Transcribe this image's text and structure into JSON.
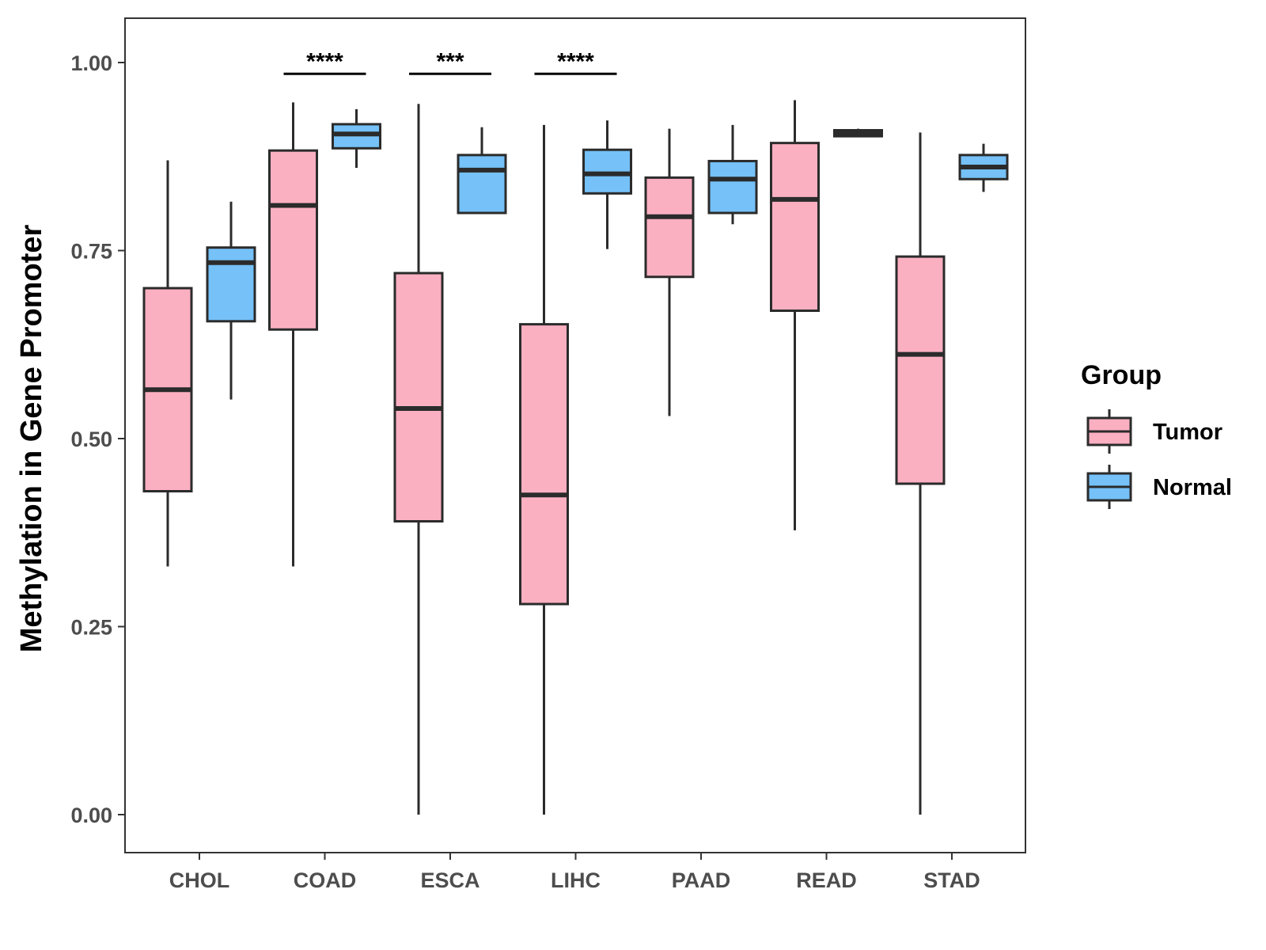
{
  "chart_data": {
    "type": "boxplot",
    "title": "",
    "xlabel": "",
    "ylabel": "Methylation in Gene Promoter",
    "ylim": [
      -0.05,
      1.06
    ],
    "yticks": [
      "0.00",
      "0.25",
      "0.50",
      "0.75",
      "1.00"
    ],
    "ytick_values": [
      0,
      0.25,
      0.5,
      0.75,
      1.0
    ],
    "categories": [
      "CHOL",
      "COAD",
      "ESCA",
      "LIHC",
      "PAAD",
      "READ",
      "STAD"
    ],
    "series": [
      {
        "name": "Tumor",
        "color": "#FBB0C2",
        "boxes": [
          {
            "whisker_low": 0.33,
            "q1": 0.43,
            "median": 0.565,
            "q3": 0.7,
            "whisker_high": 0.87
          },
          {
            "whisker_low": 0.33,
            "q1": 0.645,
            "median": 0.81,
            "q3": 0.883,
            "whisker_high": 0.947
          },
          {
            "whisker_low": 0.0,
            "q1": 0.39,
            "median": 0.54,
            "q3": 0.72,
            "whisker_high": 0.945
          },
          {
            "whisker_low": 0.0,
            "q1": 0.28,
            "median": 0.425,
            "q3": 0.652,
            "whisker_high": 0.917
          },
          {
            "whisker_low": 0.53,
            "q1": 0.715,
            "median": 0.795,
            "q3": 0.847,
            "whisker_high": 0.912
          },
          {
            "whisker_low": 0.378,
            "q1": 0.67,
            "median": 0.818,
            "q3": 0.893,
            "whisker_high": 0.95
          },
          {
            "whisker_low": 0.0,
            "q1": 0.44,
            "median": 0.612,
            "q3": 0.742,
            "whisker_high": 0.907
          }
        ]
      },
      {
        "name": "Normal",
        "color": "#75C1F8",
        "boxes": [
          {
            "whisker_low": 0.552,
            "q1": 0.656,
            "median": 0.734,
            "q3": 0.754,
            "whisker_high": 0.815
          },
          {
            "whisker_low": 0.86,
            "q1": 0.886,
            "median": 0.905,
            "q3": 0.918,
            "whisker_high": 0.938
          },
          {
            "whisker_low": 0.8,
            "q1": 0.8,
            "median": 0.857,
            "q3": 0.877,
            "whisker_high": 0.914
          },
          {
            "whisker_low": 0.752,
            "q1": 0.826,
            "median": 0.852,
            "q3": 0.884,
            "whisker_high": 0.923
          },
          {
            "whisker_low": 0.785,
            "q1": 0.8,
            "median": 0.845,
            "q3": 0.869,
            "whisker_high": 0.917
          },
          {
            "whisker_low": 0.902,
            "q1": 0.902,
            "median": 0.906,
            "q3": 0.91,
            "whisker_high": 0.912
          },
          {
            "whisker_low": 0.828,
            "q1": 0.845,
            "median": 0.861,
            "q3": 0.877,
            "whisker_high": 0.892
          }
        ]
      }
    ],
    "significance": [
      {
        "category": "COAD",
        "label": "****",
        "y": 0.985
      },
      {
        "category": "ESCA",
        "label": "***",
        "y": 0.985
      },
      {
        "category": "LIHC",
        "label": "****",
        "y": 0.985
      }
    ],
    "legend": {
      "title": "Group",
      "position": "right",
      "items": [
        "Tumor",
        "Normal"
      ]
    },
    "grid": false
  }
}
